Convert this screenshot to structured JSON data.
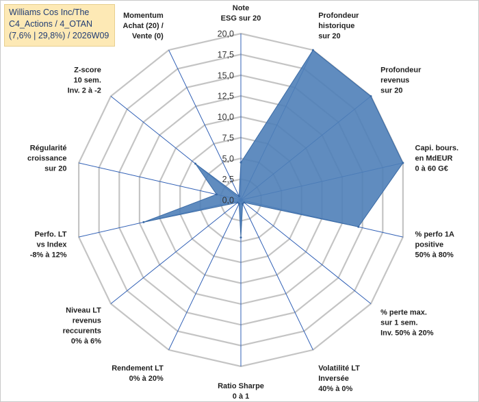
{
  "title_lines": [
    "Williams Cos Inc/The",
    "C4_Actions / 4_OTAN",
    "(7,6% | 29,8%) / 2026W09"
  ],
  "colors": {
    "fill": "#4f7fb8",
    "stroke": "#3a6aa5",
    "grid": "#c4c4c4",
    "spoke": "#2f5fb5",
    "title_bg": "#fde9b5"
  },
  "chart_data": {
    "type": "radar",
    "rmax": 20,
    "ticks": [
      "0,0",
      "2,5",
      "5,0",
      "7,5",
      "10,0",
      "12,5",
      "15,0",
      "17,5",
      "20,0"
    ],
    "tick_values": [
      0,
      2.5,
      5,
      7.5,
      10,
      12.5,
      15,
      17.5,
      20
    ],
    "grid": true,
    "axes": [
      {
        "label": [
          "Note",
          "ESG sur 20"
        ],
        "value": 4.5
      },
      {
        "label": [
          "Profondeur",
          "historique",
          "sur 20"
        ],
        "value": 20
      },
      {
        "label": [
          "Profondeur",
          "revenus",
          "sur 20"
        ],
        "value": 20
      },
      {
        "label": [
          "Capi. bours.",
          "en MdEUR",
          "0 à 60 G€"
        ],
        "value": 20
      },
      {
        "label": [
          "% perfo 1A",
          "positive",
          "50% à 80%"
        ],
        "value": 14.5
      },
      {
        "label": [
          "% perte max.",
          "sur 1 sem.",
          "Inv. 50% à 20%"
        ],
        "value": 0.5
      },
      {
        "label": [
          "Volatilité LT",
          "Inversée",
          "40% à 0%"
        ],
        "value": 0.5
      },
      {
        "label": [
          "Ratio Sharpe",
          "0 à 1"
        ],
        "value": 4.5
      },
      {
        "label": [
          "Rendement LT",
          "0% à 20%"
        ],
        "value": 0.5
      },
      {
        "label": [
          "Niveau LT",
          "revenus",
          "reccurents",
          "0% à 6%"
        ],
        "value": 0.5
      },
      {
        "label": [
          "Perfo. LT",
          "vs Index",
          "-8% à 12%"
        ],
        "value": 12
      },
      {
        "label": [
          "Régularité",
          "croissance",
          "sur 20"
        ],
        "value": 3
      },
      {
        "label": [
          "Z-score",
          "10 sem.",
          "Inv. 2 à -2"
        ],
        "value": 7
      },
      {
        "label": [
          "Momentum",
          "Achat (20) /",
          "Vente (0)"
        ],
        "value": 0.5
      }
    ]
  }
}
